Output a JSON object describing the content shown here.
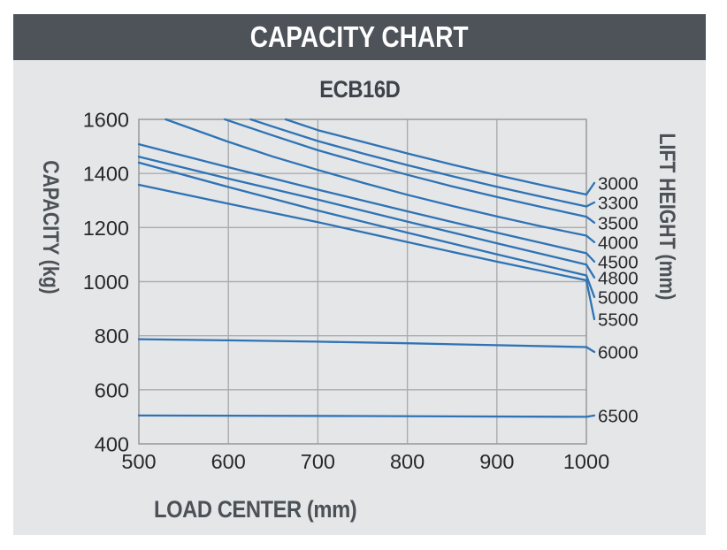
{
  "title": "CAPACITY CHART",
  "subtitle": "ECB16D",
  "colors": {
    "title_bar_bg": "#4d5359",
    "title_text": "#ffffff",
    "panel_bg": "#e5e6e8",
    "curve_blue": "#2e73b5",
    "grid": "#aaacae",
    "plot_border": "#9b9da0",
    "tick_text": "#26282b",
    "axis_title_text": "#4b5156"
  },
  "chart_data": {
    "type": "line",
    "title": "ECB16D",
    "xlabel": "LOAD CENTER (mm)",
    "ylabel": "CAPACITY (kg)",
    "y2label": "LIFT HEIGHT (mm)",
    "xlim": [
      500,
      1000
    ],
    "ylim": [
      400,
      1600
    ],
    "xticks": [
      500,
      600,
      700,
      800,
      900,
      1000
    ],
    "yticks": [
      1600,
      1400,
      1200,
      1000,
      800,
      600,
      400
    ],
    "grid": true,
    "legend_position": "right-of-plot",
    "series_note": "each series = capacity (kg) vs load center (mm) for one lift height (mm); label_cap is the capacity level where the right-hand label sits",
    "series": [
      {
        "lift_height": "3000",
        "label_cap": 1365,
        "points": [
          [
            664,
            1600
          ],
          [
            700,
            1560
          ],
          [
            750,
            1517
          ],
          [
            800,
            1474
          ],
          [
            850,
            1433
          ],
          [
            900,
            1394
          ],
          [
            950,
            1357
          ],
          [
            1000,
            1322
          ]
        ]
      },
      {
        "lift_height": "3300",
        "label_cap": 1293,
        "points": [
          [
            625,
            1600
          ],
          [
            650,
            1573
          ],
          [
            700,
            1520
          ],
          [
            750,
            1474
          ],
          [
            800,
            1431
          ],
          [
            850,
            1390
          ],
          [
            900,
            1351
          ],
          [
            950,
            1314
          ],
          [
            1000,
            1278
          ]
        ]
      },
      {
        "lift_height": "3500",
        "label_cap": 1218,
        "points": [
          [
            596,
            1600
          ],
          [
            650,
            1540
          ],
          [
            700,
            1486
          ],
          [
            750,
            1439
          ],
          [
            800,
            1395
          ],
          [
            850,
            1352
          ],
          [
            900,
            1313
          ],
          [
            950,
            1276
          ],
          [
            1000,
            1240
          ]
        ]
      },
      {
        "lift_height": "4000",
        "label_cap": 1146,
        "points": [
          [
            530,
            1600
          ],
          [
            600,
            1517
          ],
          [
            650,
            1462
          ],
          [
            700,
            1413
          ],
          [
            750,
            1366
          ],
          [
            800,
            1321
          ],
          [
            850,
            1280
          ],
          [
            900,
            1241
          ],
          [
            950,
            1204
          ],
          [
            1000,
            1170
          ]
        ]
      },
      {
        "lift_height": "4500",
        "label_cap": 1074,
        "points": [
          [
            500,
            1508
          ],
          [
            600,
            1423
          ],
          [
            700,
            1340
          ],
          [
            800,
            1260
          ],
          [
            900,
            1181
          ],
          [
            1000,
            1105
          ]
        ]
      },
      {
        "lift_height": "4800",
        "label_cap": 1015,
        "points": [
          [
            500,
            1462
          ],
          [
            600,
            1381
          ],
          [
            700,
            1303
          ],
          [
            800,
            1222
          ],
          [
            900,
            1142
          ],
          [
            1000,
            1063
          ]
        ]
      },
      {
        "lift_height": "5000",
        "label_cap": 943,
        "points": [
          [
            500,
            1440
          ],
          [
            600,
            1350
          ],
          [
            700,
            1263
          ],
          [
            800,
            1181
          ],
          [
            900,
            1101
          ],
          [
            1000,
            1023
          ]
        ]
      },
      {
        "lift_height": "5500",
        "label_cap": 861,
        "points": [
          [
            500,
            1358
          ],
          [
            600,
            1288
          ],
          [
            700,
            1220
          ],
          [
            800,
            1146
          ],
          [
            900,
            1074
          ],
          [
            1000,
            1005
          ]
        ]
      },
      {
        "lift_height": "6000",
        "label_cap": 740,
        "points": [
          [
            500,
            787
          ],
          [
            600,
            783
          ],
          [
            700,
            778
          ],
          [
            800,
            772
          ],
          [
            900,
            765
          ],
          [
            1000,
            758
          ]
        ]
      },
      {
        "lift_height": "6500",
        "label_cap": 505,
        "points": [
          [
            500,
            505
          ],
          [
            750,
            503
          ],
          [
            1000,
            500
          ]
        ]
      }
    ]
  }
}
